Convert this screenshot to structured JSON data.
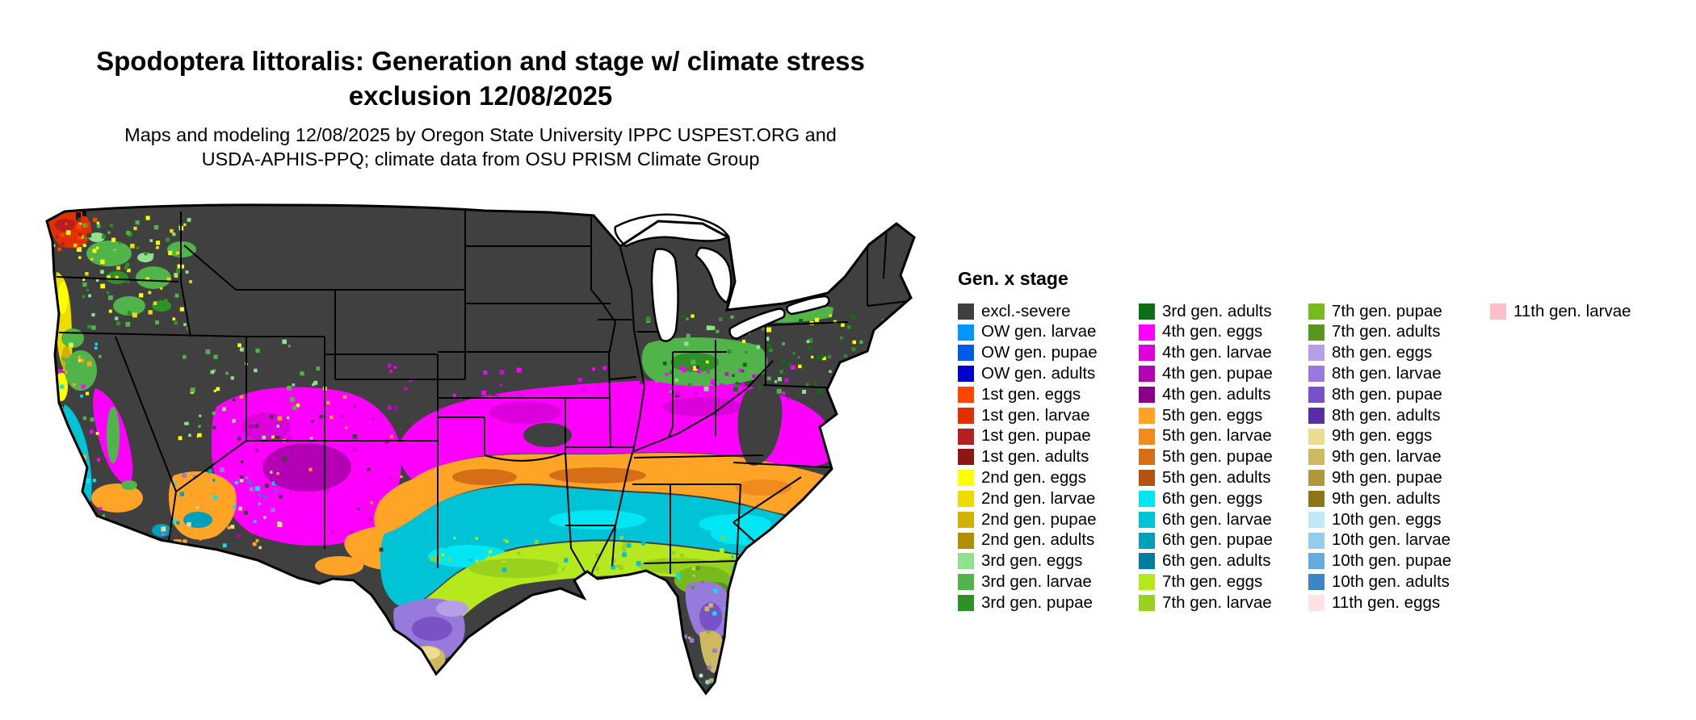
{
  "title": {
    "line1": "Spodoptera littoralis: Generation and stage w/ climate stress",
    "line2": "exclusion 12/08/2025"
  },
  "subtitle": {
    "line1": "Maps and modeling 12/08/2025 by Oregon State University IPPC USPEST.ORG and",
    "line2": "USDA-APHIS-PPQ; climate data from OSU PRISM Climate Group"
  },
  "legend": {
    "heading": "Gen. x stage",
    "columns": [
      [
        {
          "key": "excl_severe",
          "label": "excl.-severe"
        },
        {
          "key": "ow_larvae",
          "label": "OW gen. larvae"
        },
        {
          "key": "ow_pupae",
          "label": "OW gen. pupae"
        },
        {
          "key": "ow_adults",
          "label": "OW gen. adults"
        },
        {
          "key": "g1_eggs",
          "label": "1st gen. eggs"
        },
        {
          "key": "g1_larvae",
          "label": "1st gen. larvae"
        },
        {
          "key": "g1_pupae",
          "label": "1st gen. pupae"
        },
        {
          "key": "g1_adults",
          "label": "1st gen. adults"
        },
        {
          "key": "g2_eggs",
          "label": "2nd gen. eggs"
        },
        {
          "key": "g2_larvae",
          "label": "2nd gen. larvae"
        },
        {
          "key": "g2_pupae",
          "label": "2nd gen. pupae"
        },
        {
          "key": "g2_adults",
          "label": "2nd gen. adults"
        },
        {
          "key": "g3_eggs",
          "label": "3rd gen. eggs"
        },
        {
          "key": "g3_larvae",
          "label": "3rd gen. larvae"
        },
        {
          "key": "g3_pupae",
          "label": "3rd gen. pupae"
        }
      ],
      [
        {
          "key": "g3_adults",
          "label": "3rd gen. adults"
        },
        {
          "key": "g4_eggs",
          "label": "4th gen. eggs"
        },
        {
          "key": "g4_larvae",
          "label": "4th gen. larvae"
        },
        {
          "key": "g4_pupae",
          "label": "4th gen. pupae"
        },
        {
          "key": "g4_adults",
          "label": "4th gen. adults"
        },
        {
          "key": "g5_eggs",
          "label": "5th gen. eggs"
        },
        {
          "key": "g5_larvae",
          "label": "5th gen. larvae"
        },
        {
          "key": "g5_pupae",
          "label": "5th gen. pupae"
        },
        {
          "key": "g5_adults",
          "label": "5th gen. adults"
        },
        {
          "key": "g6_eggs",
          "label": "6th gen. eggs"
        },
        {
          "key": "g6_larvae",
          "label": "6th gen. larvae"
        },
        {
          "key": "g6_pupae",
          "label": "6th gen. pupae"
        },
        {
          "key": "g6_adults",
          "label": "6th gen. adults"
        },
        {
          "key": "g7_eggs",
          "label": "7th gen. eggs"
        },
        {
          "key": "g7_larvae",
          "label": "7th gen. larvae"
        }
      ],
      [
        {
          "key": "g7_pupae",
          "label": "7th gen. pupae"
        },
        {
          "key": "g7_adults",
          "label": "7th gen. adults"
        },
        {
          "key": "g8_eggs",
          "label": "8th gen. eggs"
        },
        {
          "key": "g8_larvae",
          "label": "8th gen. larvae"
        },
        {
          "key": "g8_pupae",
          "label": "8th gen. pupae"
        },
        {
          "key": "g8_adults",
          "label": "8th gen. adults"
        },
        {
          "key": "g9_eggs",
          "label": "9th gen. eggs"
        },
        {
          "key": "g9_larvae",
          "label": "9th gen. larvae"
        },
        {
          "key": "g9_pupae",
          "label": "9th gen. pupae"
        },
        {
          "key": "g9_adults",
          "label": "9th gen. adults"
        },
        {
          "key": "g10_eggs",
          "label": "10th gen. eggs"
        },
        {
          "key": "g10_larvae",
          "label": "10th gen. larvae"
        },
        {
          "key": "g10_pupae",
          "label": "10th gen. pupae"
        },
        {
          "key": "g10_adults",
          "label": "10th gen. adults"
        },
        {
          "key": "g11_eggs",
          "label": "11th gen. eggs"
        }
      ],
      [
        {
          "key": "g11_larvae",
          "label": "11th gen. larvae"
        }
      ]
    ]
  },
  "palette": {
    "excl_severe": "#404040",
    "ow_larvae": "#0095FF",
    "ow_pupae": "#005CE6",
    "ow_adults": "#0000CD",
    "g1_eggs": "#FF4500",
    "g1_larvae": "#E03000",
    "g1_pupae": "#B51F1F",
    "g1_adults": "#8F1515",
    "g2_eggs": "#FFFF00",
    "g2_larvae": "#EDDC00",
    "g2_pupae": "#D2B100",
    "g2_adults": "#B28F00",
    "g3_eggs": "#90E08C",
    "g3_larvae": "#50B44B",
    "g3_pupae": "#2E9128",
    "g3_adults": "#0E6E14",
    "g4_eggs": "#FF00FF",
    "g4_larvae": "#DC00DC",
    "g4_pupae": "#B400B4",
    "g4_adults": "#8B008B",
    "g5_eggs": "#FFA426",
    "g5_larvae": "#F28B1F",
    "g5_pupae": "#D66E18",
    "g5_adults": "#B45211",
    "g6_eggs": "#00E6F2",
    "g6_larvae": "#00C4D6",
    "g6_pupae": "#00A0BA",
    "g6_adults": "#007C9E",
    "g7_eggs": "#B6E81E",
    "g7_larvae": "#9AD11E",
    "g7_pupae": "#78BA1E",
    "g7_adults": "#57971E",
    "g8_eggs": "#B79FE8",
    "g8_larvae": "#9879DC",
    "g8_pupae": "#7A52C8",
    "g8_adults": "#5B2CA8",
    "g9_eggs": "#EADC90",
    "g9_larvae": "#CEB961",
    "g9_pupae": "#B0973B",
    "g9_adults": "#8C7618",
    "g10_eggs": "#BEE9F5",
    "g10_larvae": "#92CEEC",
    "g10_pupae": "#66ABDC",
    "g10_adults": "#3E85C8",
    "g11_eggs": "#FFE2E2",
    "g11_larvae": "#FFBFC8"
  }
}
